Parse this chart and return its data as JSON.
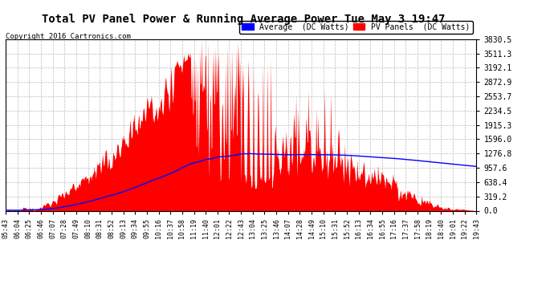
{
  "title": "Total PV Panel Power & Running Average Power Tue May 3 19:47",
  "copyright": "Copyright 2016 Cartronics.com",
  "legend_avg": "Average  (DC Watts)",
  "legend_pv": "PV Panels  (DC Watts)",
  "y_ticks": [
    0.0,
    319.2,
    638.4,
    957.6,
    1276.8,
    1596.0,
    1915.3,
    2234.5,
    2553.7,
    2872.9,
    3192.1,
    3511.3,
    3830.5
  ],
  "x_tick_labels": [
    "05:43",
    "06:04",
    "06:25",
    "06:46",
    "07:07",
    "07:28",
    "07:49",
    "08:10",
    "08:31",
    "08:52",
    "09:13",
    "09:34",
    "09:55",
    "10:16",
    "10:37",
    "10:58",
    "11:19",
    "11:40",
    "12:01",
    "12:22",
    "12:43",
    "13:04",
    "13:25",
    "13:46",
    "14:07",
    "14:28",
    "14:49",
    "15:10",
    "15:31",
    "15:52",
    "16:13",
    "16:34",
    "16:55",
    "17:16",
    "17:37",
    "17:58",
    "18:19",
    "18:40",
    "19:01",
    "19:22",
    "19:43"
  ],
  "bg_color": "#ffffff",
  "plot_bg_color": "#ffffff",
  "grid_color": "#bbbbbb",
  "pv_fill_color": "#ff0000",
  "avg_line_color": "#0000ff",
  "title_fontsize": 11,
  "ymax": 3830.5
}
